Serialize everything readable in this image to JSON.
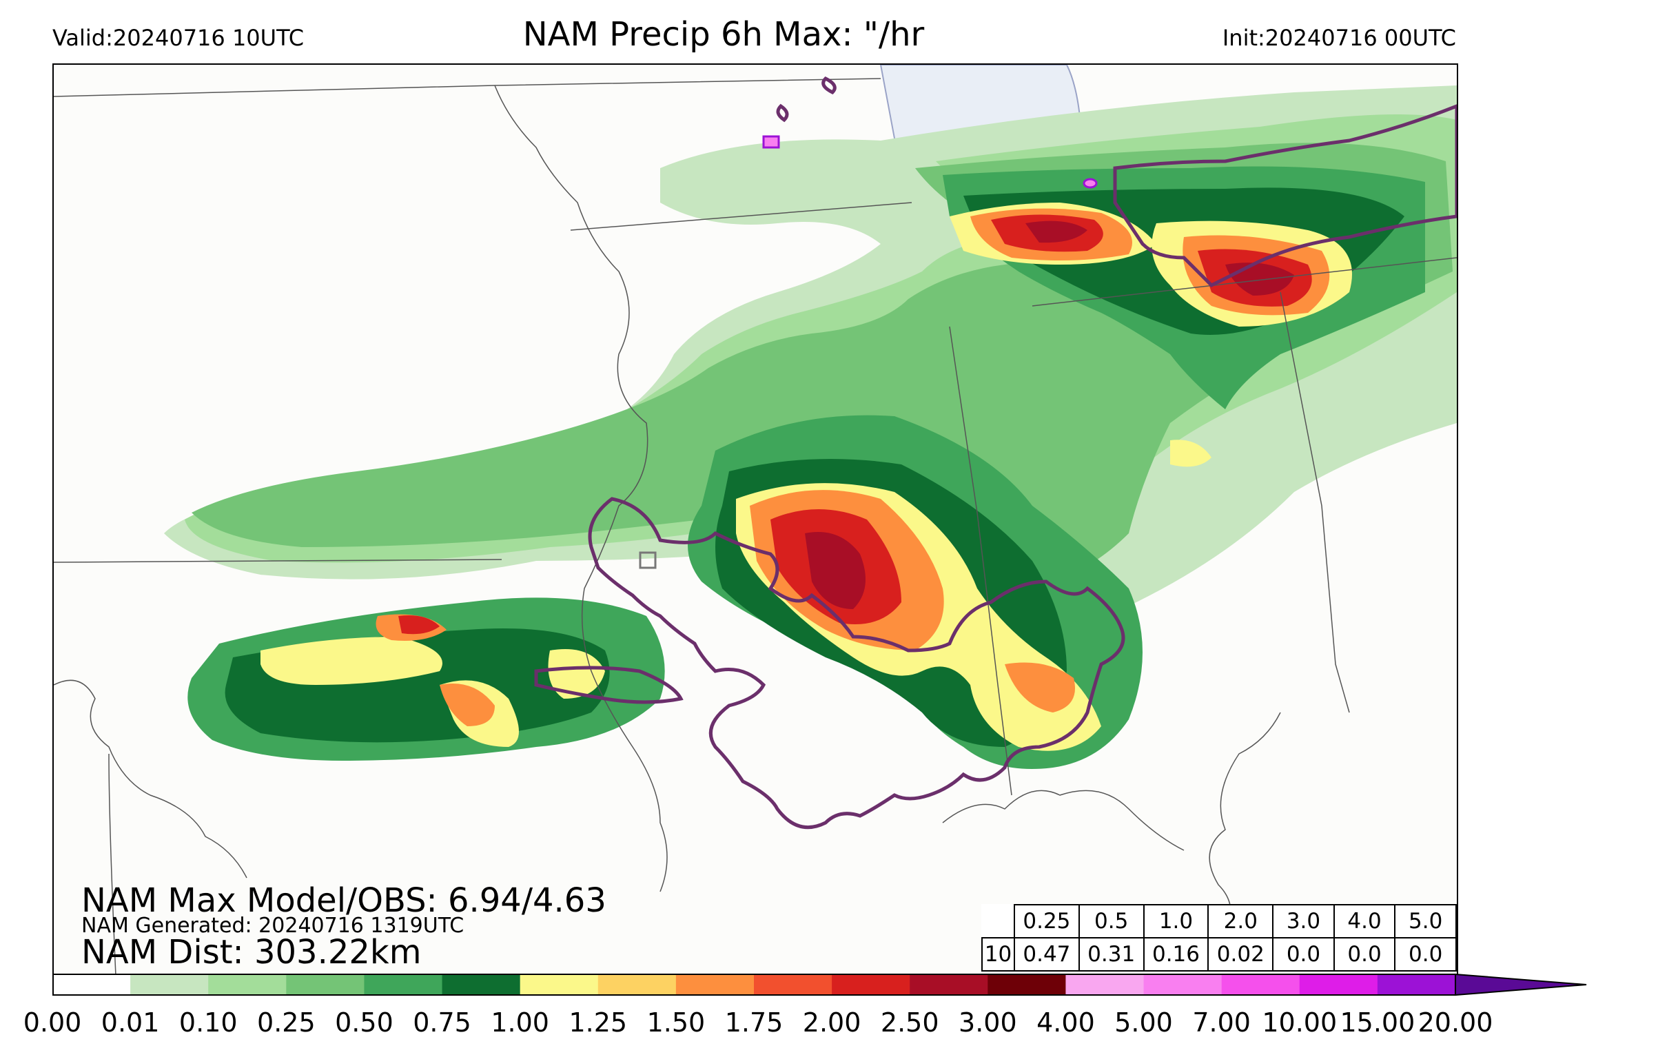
{
  "header": {
    "valid": "Valid:20240716 10UTC",
    "title": "NAM Precip 6h Max: \"/hr",
    "init": "Init:20240716 00UTC"
  },
  "stats": {
    "max_model_obs": "NAM Max Model/OBS: 6.94/4.63",
    "generated": "NAM Generated: 20240716 1319UTC",
    "dist": "NAM Dist: 303.22km"
  },
  "threshold_table": {
    "corner_label": "10",
    "thresholds": [
      "0.25",
      "0.5",
      "1.0",
      "2.0",
      "3.0",
      "4.0",
      "5.0"
    ],
    "values": [
      "0.47",
      "0.31",
      "0.16",
      "0.02",
      "0.0",
      "0.0",
      "0.0"
    ]
  },
  "colorbar": {
    "ticks": [
      "0.00",
      "0.01",
      "0.10",
      "0.25",
      "0.50",
      "0.75",
      "1.00",
      "1.25",
      "1.50",
      "1.75",
      "2.00",
      "2.50",
      "3.00",
      "4.00",
      "5.00",
      "7.00",
      "10.00",
      "15.00",
      "20.00"
    ],
    "colors": [
      "#ffffff",
      "#c7e6c0",
      "#a3dd9a",
      "#74c476",
      "#3fa65a",
      "#0e6e30",
      "#fbf88a",
      "#fdd262",
      "#fd8f3e",
      "#f2502e",
      "#d8201e",
      "#a80e26",
      "#6e0007",
      "#f9a7f0",
      "#f97ff0",
      "#f550ec",
      "#de1de8",
      "#9c12d6"
    ],
    "extend_color": "#5a0a96"
  },
  "map_colors": {
    "background": "#fcfcfa",
    "lake": "#e9eef6",
    "obs_contour": "#6b2f6b",
    "borders": "#555555"
  }
}
